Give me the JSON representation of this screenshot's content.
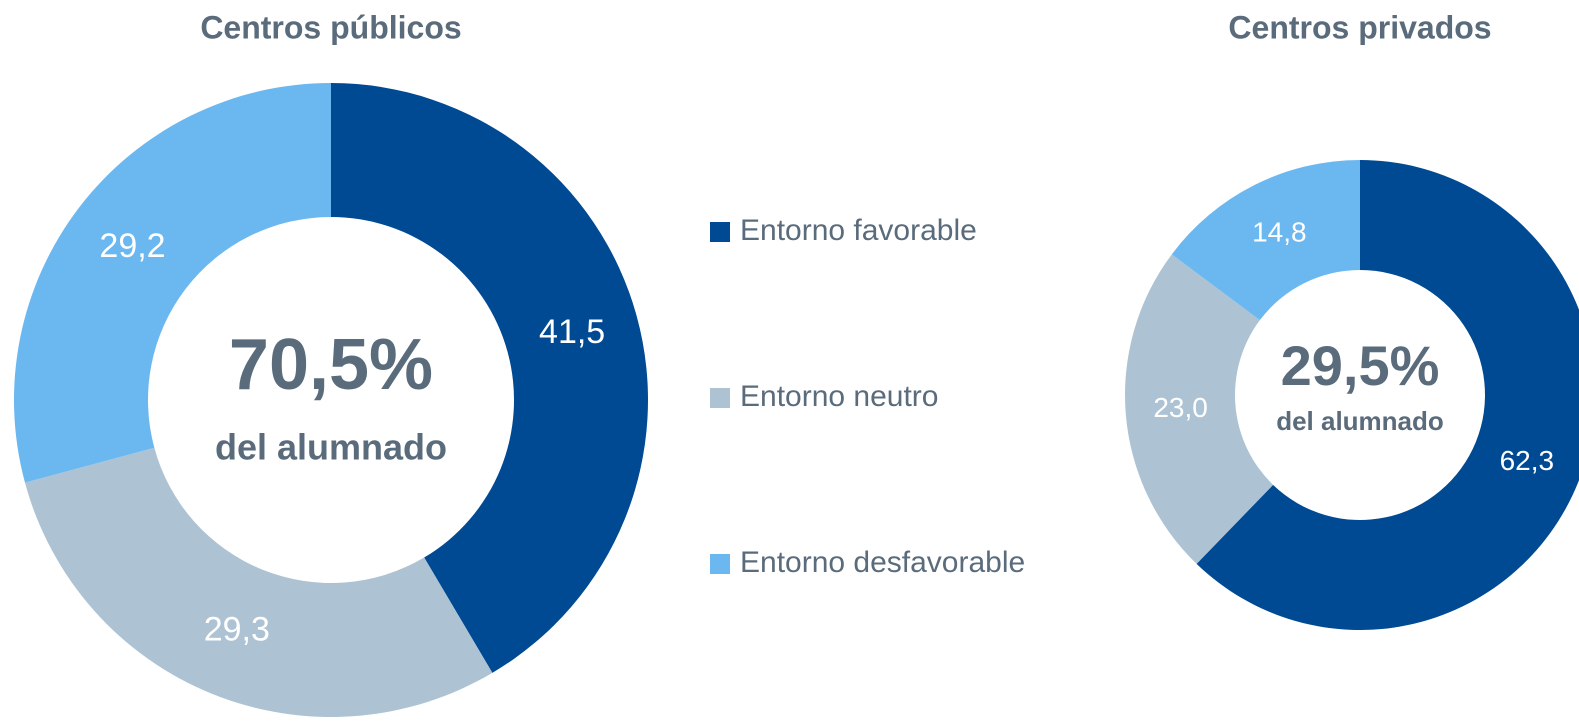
{
  "chart_data": [
    {
      "type": "donut",
      "title": "Centros públicos",
      "categories": [
        "Entorno favorable",
        "Entorno neutro",
        "Entorno desfavorable"
      ],
      "colors": [
        "#004a94",
        "#adc3d4",
        "#6bb8f0"
      ],
      "values": [
        41.5,
        29.3,
        29.2
      ],
      "value_labels": [
        "41,5",
        "29,3",
        "29,2"
      ],
      "center_label": "70,5%",
      "center_sublabel": "del alumnado"
    },
    {
      "type": "donut",
      "title": "Centros privados",
      "values": [
        62.3,
        23.0,
        14.8
      ],
      "value_labels": [
        "62,3",
        "23,0",
        "14,8"
      ],
      "center_label": "29,5%",
      "center_sublabel": "del alumnado"
    }
  ]
}
